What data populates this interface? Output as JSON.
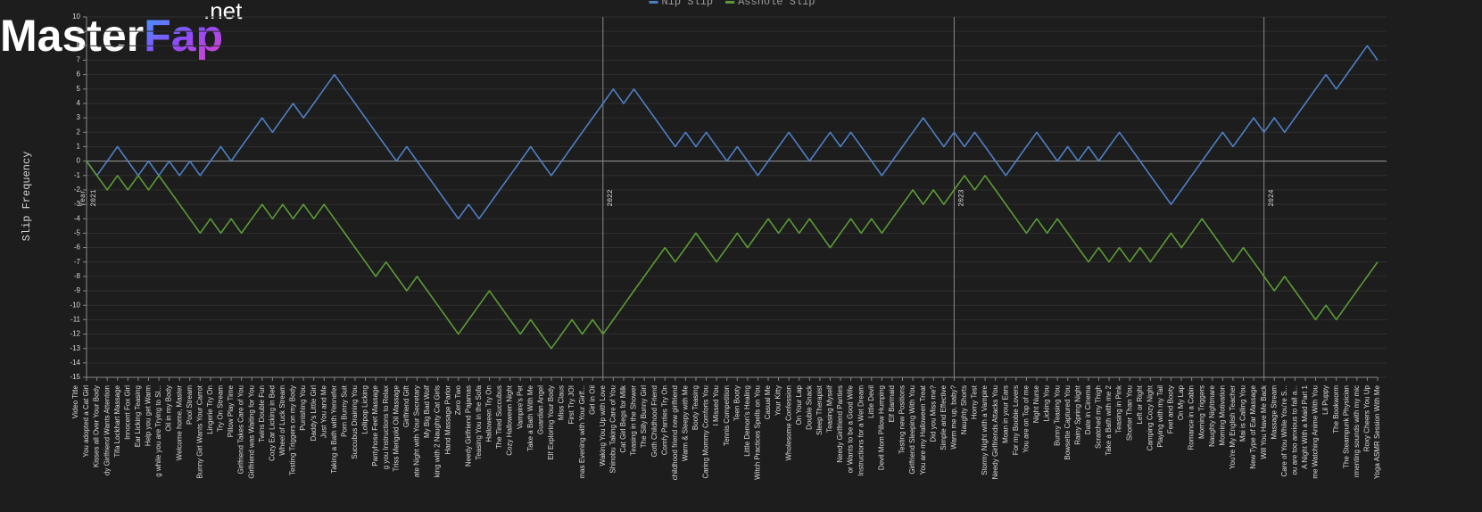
{
  "watermark": {
    "main": "Master",
    "accent": "Fap",
    "suffix": ".net"
  },
  "chart_data": {
    "type": "line",
    "ylabel": "Slip Frequency",
    "xlabel": "Video Title",
    "ylim": [
      -15,
      10
    ],
    "yticks": [
      -15,
      -14,
      -13,
      -12,
      -11,
      -10,
      -9,
      -8,
      -7,
      -6,
      -5,
      -4,
      -3,
      -2,
      -1,
      0,
      1,
      2,
      3,
      4,
      5,
      6,
      7,
      8,
      9,
      10
    ],
    "grid": true,
    "legend": "top",
    "year_title": "Year",
    "year_markers": [
      {
        "category": "You adopted a Cat Girl",
        "label": "2021"
      },
      {
        "category": "Waking You Up with Love",
        "label": "2022"
      },
      {
        "category": "Warm me up, baby?",
        "label": "2023"
      },
      {
        "category": "Will You Have Me Back",
        "label": "2024"
      }
    ],
    "categories": [
      "You adopted a Cat Girl",
      "Kisses all Over Your Body",
      "dy Girlfriend Wants Attention",
      "Tifa Lockhart Massage",
      "Innocent Fox Girl",
      "Ear Licking Teasing",
      "Help you get Warm",
      "g while you are Trying to Sl...",
      "Oil in my Body",
      "Welcome home, Master",
      "Pool Stream",
      "Bunny Girl Wants Your Carrot",
      "Lingerie Try On",
      "Try On Stream",
      "Pillow Play Time",
      "Girlfriend Takes Care of You",
      "Girlfriend was Waiting for You",
      "Twins Double Fun",
      "Cozy Ear Licking in Bed",
      "Wheel of Luck Stream",
      "Testing Triggers on my Body",
      "Punishing You",
      "Daddy's Little Girl",
      "Just You and Me",
      "Taking a Bath with Yennefer",
      "Porn Bunny Suit",
      "Succubus Draining You",
      "Lollipop Licking",
      "Pantyhose Feet Massage",
      "g you Instructions to Relax",
      "Triss Merigold Oil Massage",
      "Girlfriend Gift",
      "ate Night with Your Secretary",
      "My Big Bad Wolf",
      "king with 2 Naughty Cat Girls",
      "Hand Massage Parlor",
      "Zero Two",
      "Needy Girlfriend Pajamas",
      "Teasing You in the Sofa",
      "Halloween Try On",
      "The Tired Succubus",
      "Cozy Halloween Night",
      "Vampire's Pet",
      "Take a Bath With Me",
      "Guardian Angel",
      "Elf Exploring Your Body",
      "Miss Claus",
      "First Try JOI",
      "mas Evening with Your Girlf...",
      "Girl in Oil",
      "Waking You Up with Love",
      "Shinobu Taking Care of You",
      "Cat Girl Begs for Milk",
      "Teasing in the Shower",
      "The Silly Bunny Girl",
      "Goth Childhood Friend",
      "Comfy Panties Try On",
      "childhood friend new girlfriend",
      "Warm & Sleepy with Me",
      "Booty Teasing",
      "Caring Mommy Comforts You",
      "I Missed You",
      "Tennis Competition",
      "Teen Booty",
      "Little Demon's Healing",
      "Witch Practices Spells on You",
      "Casual Me",
      "Your Kitty",
      "Wholesome Confession",
      "On Your Lap",
      "Double Snack",
      "Sleep Therapist",
      "Teasing Myself",
      "Needy Girlfriend Panties",
      "or Wants to be a Good Wife",
      "Instructions for a Wet Dream",
      "Little Devil",
      "Devil Mom Pillow Humping",
      "Elf Barmaid",
      "Testing new Positions",
      "Girlfriend Sleeping With You",
      "You are my Halloween Treat",
      "Did you Miss me?",
      "Simple and Effective",
      "Warm me up, baby?",
      "Naughty Shorts",
      "Horny Test",
      "Stormy Night with a Vampire",
      "Needy Girlfriends Attacks You",
      "Moan in your Ears",
      "For my Boobie Lovers",
      "You are on Top of me",
      "Night Nurse",
      "Licking You",
      "Bunny Teasing You",
      "Bowsette Captured You",
      "Rainy Spring Night",
      "Date in Cinema",
      "Scratched my Thigh",
      "Take a Bath with me 2",
      "Teasing in Pink",
      "Shorter Than You",
      "Left or Right",
      "Camping Cozy Night",
      "Playing with my Tail",
      "Feet and Booty",
      "On My Lap",
      "Romance in a Cabin",
      "Morning Triggers",
      "Naughty Nightmare",
      "Morning Motivation",
      "You're My English Teacher",
      "Mai is Calling You",
      "New Type of Ear Massage",
      "Will You Have Me Back",
      "Massage Stream",
      "Care of You While You're S...",
      "ou are too anxious to fall a...",
      "A Night With a Maid Part 1",
      "me Watching Anime With You",
      "Lil Puppy",
      "The Bookworm",
      "The Steampunk Physician",
      "rmenting sounds with my mic",
      "Roxy Cheers You Up",
      "Yoga ASMR Session With Me"
    ],
    "series": [
      {
        "name": "Nip Slip",
        "color": "#4d7fc4",
        "values": [
          0,
          -1,
          0,
          1,
          0,
          -1,
          0,
          -1,
          0,
          -1,
          0,
          -1,
          0,
          1,
          0,
          1,
          2,
          3,
          2,
          3,
          4,
          3,
          4,
          5,
          6,
          5,
          4,
          3,
          2,
          1,
          0,
          1,
          0,
          -1,
          -2,
          -3,
          -4,
          -3,
          -4,
          -3,
          -2,
          -1,
          0,
          1,
          0,
          -1,
          0,
          1,
          2,
          3,
          4,
          5,
          4,
          5,
          4,
          3,
          2,
          1,
          2,
          1,
          2,
          1,
          0,
          1,
          0,
          -1,
          0,
          1,
          2,
          1,
          0,
          1,
          2,
          1,
          2,
          1,
          0,
          -1,
          0,
          1,
          2,
          3,
          2,
          1,
          2,
          1,
          2,
          1,
          0,
          -1,
          0,
          1,
          2,
          1,
          0,
          1,
          0,
          1,
          0,
          1,
          2,
          1,
          0,
          -1,
          -2,
          -3,
          -2,
          -1,
          0,
          1,
          2,
          1,
          2,
          3,
          2,
          3,
          2,
          3,
          4,
          5,
          6,
          5,
          6,
          7,
          8,
          7
        ]
      },
      {
        "name": "Asshole Slip",
        "color": "#5b9a36",
        "values": [
          0,
          -1,
          -2,
          -1,
          -2,
          -1,
          -2,
          -1,
          -2,
          -3,
          -4,
          -5,
          -4,
          -5,
          -4,
          -5,
          -4,
          -3,
          -4,
          -3,
          -4,
          -3,
          -4,
          -3,
          -4,
          -5,
          -6,
          -7,
          -8,
          -7,
          -8,
          -9,
          -8,
          -9,
          -10,
          -11,
          -12,
          -11,
          -10,
          -9,
          -10,
          -11,
          -12,
          -11,
          -12,
          -13,
          -12,
          -11,
          -12,
          -11,
          -12,
          -11,
          -10,
          -9,
          -8,
          -7,
          -6,
          -7,
          -6,
          -5,
          -6,
          -7,
          -6,
          -5,
          -6,
          -5,
          -4,
          -5,
          -4,
          -5,
          -4,
          -5,
          -6,
          -5,
          -4,
          -5,
          -4,
          -5,
          -4,
          -3,
          -2,
          -3,
          -2,
          -3,
          -2,
          -1,
          -2,
          -1,
          -2,
          -3,
          -4,
          -5,
          -4,
          -5,
          -4,
          -5,
          -6,
          -7,
          -6,
          -7,
          -6,
          -7,
          -6,
          -7,
          -6,
          -5,
          -6,
          -5,
          -4,
          -5,
          -6,
          -7,
          -6,
          -7,
          -8,
          -9,
          -8,
          -9,
          -10,
          -11,
          -10,
          -11,
          -10,
          -9,
          -8,
          -7
        ]
      }
    ]
  }
}
